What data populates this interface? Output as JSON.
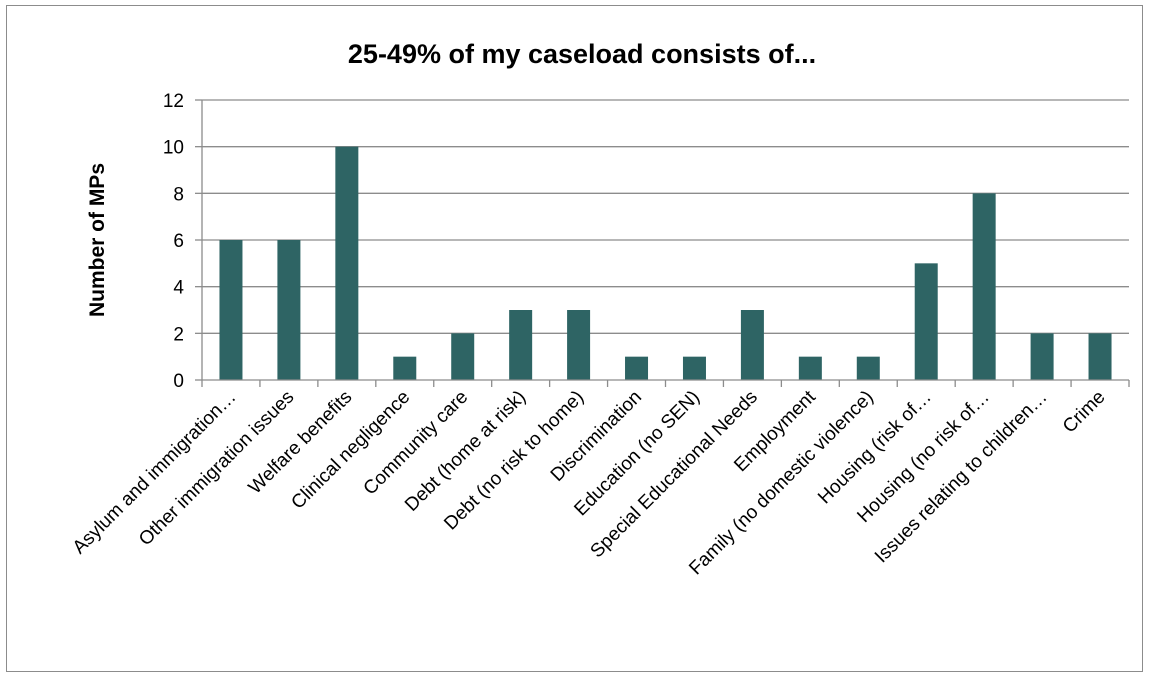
{
  "colors": {
    "bar": "#2e6464",
    "grid": "#8c8c8c",
    "axis": "#8c8c8c",
    "frame": "#8c8c8c"
  },
  "chart_data": {
    "type": "bar",
    "title": "25-49% of my caseload consists of...",
    "xlabel": "",
    "ylabel": "Number of MPs",
    "ylim": [
      0,
      12
    ],
    "yticks": [
      0,
      2,
      4,
      6,
      8,
      10,
      12
    ],
    "grid": true,
    "legend": "none",
    "categories": [
      "Asylum and immigration…",
      "Other immigration issues",
      "Welfare benefits",
      "Clinical negligence",
      "Community care",
      "Debt (home at risk)",
      "Debt (no risk to home)",
      "Discrimination",
      "Education (no SEN)",
      "Special Educational Needs",
      "Employment",
      "Family (no domestic violence)",
      "Housing (risk of…",
      "Housing (no risk of…",
      "Issues relating to children…",
      "Crime"
    ],
    "values": [
      6,
      6,
      10,
      1,
      2,
      3,
      3,
      1,
      1,
      3,
      1,
      1,
      5,
      8,
      2,
      2
    ]
  }
}
